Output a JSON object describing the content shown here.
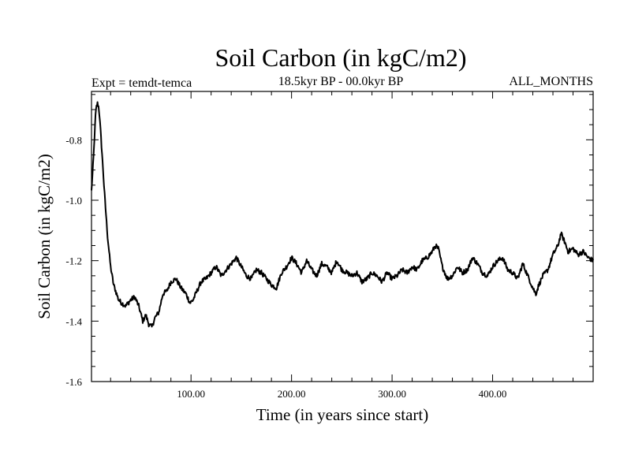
{
  "chart_data": {
    "type": "line",
    "title": "Soil Carbon (in kgC/m2)",
    "subtitle_left": "Expt = temdt-temca",
    "subtitle_center": "18.5kyr BP - 00.0kyr BP",
    "subtitle_right": "ALL_MONTHS",
    "xlabel": "Time (in years since start)",
    "ylabel": "Soil Carbon (in kgC/m2)",
    "xlim": [
      1,
      500
    ],
    "ylim": [
      -1.6,
      -0.64
    ],
    "xticks": [
      {
        "value": 100,
        "label": "100.00"
      },
      {
        "value": 200,
        "label": "200.00"
      },
      {
        "value": 300,
        "label": "300.00"
      },
      {
        "value": 400,
        "label": "400.00"
      }
    ],
    "yticks": [
      {
        "value": -0.8,
        "label": "-0.8"
      },
      {
        "value": -1.0,
        "label": "-1.0"
      },
      {
        "value": -1.2,
        "label": "-1.2"
      },
      {
        "value": -1.4,
        "label": "-1.4"
      },
      {
        "value": -1.6,
        "label": "-1.6"
      }
    ],
    "grid": false,
    "series": [
      {
        "name": "Soil Carbon",
        "color": "#000000",
        "x": [
          1,
          3,
          5,
          6,
          7,
          8,
          9,
          11,
          14,
          17,
          20,
          23,
          26,
          28,
          31,
          35,
          40,
          44,
          48,
          52,
          55,
          58,
          61,
          64,
          68,
          72,
          76,
          80,
          85,
          90,
          95,
          99,
          102,
          106,
          110,
          115,
          120,
          125,
          130,
          135,
          140,
          145,
          150,
          155,
          160,
          165,
          170,
          175,
          180,
          185,
          190,
          195,
          200,
          205,
          210,
          215,
          220,
          225,
          230,
          235,
          240,
          245,
          250,
          255,
          260,
          265,
          270,
          275,
          280,
          285,
          290,
          295,
          300,
          305,
          310,
          315,
          320,
          325,
          330,
          335,
          340,
          343,
          346,
          350,
          355,
          360,
          365,
          370,
          375,
          380,
          385,
          390,
          395,
          400,
          405,
          410,
          415,
          420,
          425,
          430,
          435,
          440,
          443,
          446,
          450,
          455,
          460,
          465,
          468,
          472,
          475,
          480,
          485,
          490,
          495,
          500
        ],
        "values": [
          -0.97,
          -0.86,
          -0.72,
          -0.69,
          -0.68,
          -0.69,
          -0.72,
          -0.82,
          -0.98,
          -1.12,
          -1.22,
          -1.28,
          -1.31,
          -1.33,
          -1.34,
          -1.35,
          -1.33,
          -1.32,
          -1.35,
          -1.4,
          -1.38,
          -1.41,
          -1.42,
          -1.39,
          -1.37,
          -1.31,
          -1.3,
          -1.27,
          -1.26,
          -1.29,
          -1.31,
          -1.34,
          -1.33,
          -1.3,
          -1.27,
          -1.26,
          -1.24,
          -1.22,
          -1.25,
          -1.23,
          -1.21,
          -1.19,
          -1.22,
          -1.25,
          -1.26,
          -1.23,
          -1.24,
          -1.26,
          -1.28,
          -1.29,
          -1.24,
          -1.22,
          -1.19,
          -1.21,
          -1.24,
          -1.2,
          -1.23,
          -1.25,
          -1.21,
          -1.22,
          -1.24,
          -1.2,
          -1.23,
          -1.24,
          -1.25,
          -1.24,
          -1.27,
          -1.26,
          -1.24,
          -1.25,
          -1.27,
          -1.24,
          -1.26,
          -1.25,
          -1.23,
          -1.24,
          -1.22,
          -1.23,
          -1.2,
          -1.19,
          -1.17,
          -1.15,
          -1.16,
          -1.22,
          -1.26,
          -1.25,
          -1.22,
          -1.24,
          -1.23,
          -1.19,
          -1.21,
          -1.24,
          -1.25,
          -1.22,
          -1.2,
          -1.19,
          -1.23,
          -1.24,
          -1.26,
          -1.21,
          -1.25,
          -1.29,
          -1.31,
          -1.28,
          -1.25,
          -1.23,
          -1.18,
          -1.15,
          -1.11,
          -1.14,
          -1.17,
          -1.16,
          -1.18,
          -1.17,
          -1.19,
          -1.2
        ]
      }
    ]
  }
}
